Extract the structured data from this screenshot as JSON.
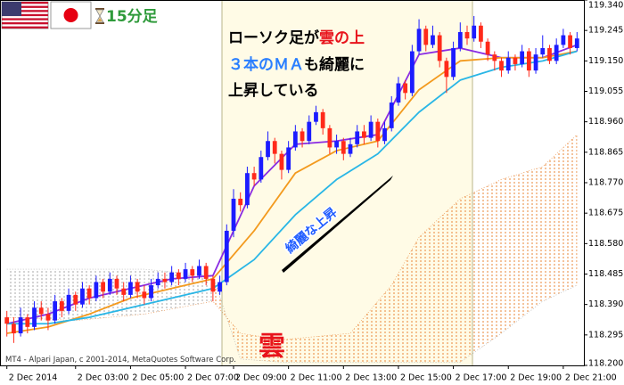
{
  "chart_data": {
    "type": "candlestick",
    "timeframe_label": "15分足",
    "copyright": "MT4 - Alpari Japan, c 2001-2014, MetaQuotes Software Corp.",
    "annotations": {
      "line1": [
        "ローソク足が",
        "雲の上"
      ],
      "line2": [
        "３本のＭＡ",
        "も綺麗に"
      ],
      "line3": "上昇している",
      "arrow_label": "綺麗な上昇",
      "cloud_label": "雲"
    },
    "up_color": "#1c1cff",
    "down_color": "#ff2a1a",
    "open": [
      118.35,
      118.33,
      118.3,
      118.35,
      118.32,
      118.38,
      118.36,
      118.34,
      118.4,
      118.37,
      118.42,
      118.39,
      118.44,
      118.41,
      118.46,
      118.43,
      118.47,
      118.44,
      118.42,
      118.46,
      118.43,
      118.41,
      118.45,
      118.47,
      118.46,
      118.49,
      118.47,
      118.5,
      118.48,
      118.51,
      118.47,
      118.43,
      118.46,
      118.62,
      118.72,
      118.7,
      118.8,
      118.78,
      118.85,
      118.9,
      118.86,
      118.81,
      118.88,
      118.93,
      118.9,
      118.96,
      118.99,
      118.94,
      118.88,
      118.9,
      118.86,
      118.89,
      118.93,
      118.91,
      118.96,
      118.9,
      118.94,
      119.02,
      119.08,
      119.05,
      119.18,
      119.25,
      119.2,
      119.23,
      119.15,
      119.1,
      119.19,
      119.24,
      119.22,
      119.26,
      119.21,
      119.17,
      119.15,
      119.12,
      119.16,
      119.14,
      119.18,
      119.12,
      119.17,
      119.19,
      119.15,
      119.2,
      119.23,
      119.19
    ],
    "high": [
      118.37,
      118.35,
      118.38,
      118.36,
      118.4,
      118.4,
      118.38,
      118.42,
      118.41,
      118.44,
      118.43,
      118.46,
      118.45,
      118.48,
      118.47,
      118.49,
      118.48,
      118.46,
      118.48,
      118.47,
      118.45,
      118.47,
      118.49,
      118.49,
      118.51,
      118.5,
      118.52,
      118.51,
      118.53,
      118.52,
      118.48,
      118.48,
      118.64,
      118.75,
      118.74,
      118.82,
      118.82,
      118.87,
      118.93,
      118.91,
      118.87,
      118.9,
      118.95,
      118.94,
      118.98,
      119.01,
      119.0,
      118.95,
      118.92,
      118.91,
      118.91,
      118.95,
      118.95,
      118.98,
      118.97,
      118.96,
      119.04,
      119.1,
      119.09,
      119.2,
      119.28,
      119.26,
      119.26,
      119.24,
      119.16,
      119.21,
      119.27,
      119.26,
      119.29,
      119.27,
      119.22,
      119.18,
      119.16,
      119.18,
      119.17,
      119.2,
      119.19,
      119.19,
      119.23,
      119.2,
      119.22,
      119.25,
      119.24,
      119.24
    ],
    "low": [
      118.29,
      118.27,
      118.29,
      118.3,
      118.31,
      118.34,
      118.31,
      118.33,
      118.35,
      118.36,
      118.37,
      118.38,
      118.39,
      118.4,
      118.41,
      118.42,
      118.42,
      118.4,
      118.41,
      118.41,
      118.39,
      118.4,
      118.44,
      118.44,
      118.45,
      118.45,
      118.46,
      118.46,
      118.47,
      118.45,
      118.4,
      118.42,
      118.45,
      118.6,
      118.68,
      118.69,
      118.76,
      118.77,
      118.84,
      118.83,
      118.78,
      118.8,
      118.87,
      118.88,
      118.89,
      118.95,
      118.92,
      118.86,
      118.86,
      118.84,
      118.85,
      118.88,
      118.89,
      118.9,
      118.88,
      118.89,
      118.93,
      119.01,
      119.03,
      119.04,
      119.17,
      119.18,
      119.19,
      119.13,
      119.05,
      119.09,
      119.18,
      119.2,
      119.21,
      119.19,
      119.15,
      119.12,
      119.1,
      119.11,
      119.12,
      119.13,
      119.1,
      119.11,
      119.16,
      119.14,
      119.14,
      119.19,
      119.17,
      119.18
    ],
    "close": [
      118.33,
      118.3,
      118.35,
      118.32,
      118.38,
      118.36,
      118.34,
      118.4,
      118.37,
      118.42,
      118.39,
      118.44,
      118.41,
      118.46,
      118.43,
      118.47,
      118.44,
      118.42,
      118.46,
      118.43,
      118.41,
      118.45,
      118.47,
      118.46,
      118.49,
      118.47,
      118.5,
      118.48,
      118.51,
      118.47,
      118.43,
      118.46,
      118.62,
      118.72,
      118.7,
      118.8,
      118.78,
      118.85,
      118.9,
      118.86,
      118.81,
      118.88,
      118.93,
      118.9,
      118.96,
      118.99,
      118.94,
      118.88,
      118.9,
      118.86,
      118.89,
      118.93,
      118.91,
      118.96,
      118.9,
      118.94,
      119.02,
      119.08,
      119.05,
      119.18,
      119.25,
      119.2,
      119.23,
      119.15,
      119.1,
      119.19,
      119.24,
      119.22,
      119.26,
      119.21,
      119.17,
      119.15,
      119.12,
      119.16,
      119.14,
      119.18,
      119.12,
      119.17,
      119.19,
      119.15,
      119.2,
      119.23,
      119.19,
      119.22
    ],
    "moving_averages": [
      {
        "color": "#8a2be2",
        "x": [
          0,
          6,
          12,
          18,
          24,
          30,
          36,
          42,
          48,
          54,
          60,
          66,
          72,
          78,
          83
        ],
        "values": [
          118.33,
          118.36,
          118.41,
          118.44,
          118.47,
          118.48,
          118.76,
          118.89,
          118.9,
          118.92,
          119.17,
          119.19,
          119.16,
          119.16,
          119.2
        ]
      },
      {
        "color": "#f39a1e",
        "x": [
          0,
          6,
          12,
          18,
          24,
          30,
          36,
          42,
          48,
          54,
          60,
          66,
          72,
          78,
          83
        ],
        "values": [
          118.3,
          118.32,
          118.36,
          118.41,
          118.44,
          118.47,
          118.62,
          118.8,
          118.87,
          118.9,
          119.06,
          119.15,
          119.16,
          119.16,
          119.18
        ]
      },
      {
        "color": "#29b6e6",
        "x": [
          0,
          6,
          12,
          18,
          24,
          30,
          36,
          42,
          48,
          54,
          60,
          66,
          72,
          78,
          83
        ],
        "values": [
          118.33,
          118.33,
          118.35,
          118.38,
          118.41,
          118.44,
          118.53,
          118.67,
          118.78,
          118.86,
          118.99,
          119.09,
          119.13,
          119.15,
          119.18
        ]
      }
    ],
    "cloud": {
      "x": [
        0,
        10,
        20,
        30,
        34,
        40,
        50,
        56,
        60,
        66,
        72,
        78,
        83
      ],
      "span_a": [
        118.35,
        118.34,
        118.36,
        118.4,
        118.3,
        118.28,
        118.3,
        118.45,
        118.6,
        118.72,
        118.78,
        118.82,
        118.92
      ],
      "span_b": [
        118.5,
        118.5,
        118.5,
        118.48,
        118.22,
        118.21,
        118.21,
        118.21,
        118.21,
        118.21,
        118.3,
        118.4,
        118.45
      ],
      "up_color": "#e8873a",
      "down_color": "#a8a8a8"
    },
    "xlim": [
      -1,
      84
    ],
    "xticks": [
      {
        "value": 0,
        "label": "2 Dec 2014"
      },
      {
        "value": 10,
        "label": "2 Dec 03:00"
      },
      {
        "value": 18,
        "label": "2 Dec 05:00"
      },
      {
        "value": 26,
        "label": "2 Dec 07:00"
      },
      {
        "value": 33,
        "label": "2 Dec 09:00"
      },
      {
        "value": 41,
        "label": "2 Dec 11:00"
      },
      {
        "value": 49,
        "label": "2 Dec 13:00"
      },
      {
        "value": 57,
        "label": "2 Dec 15:00"
      },
      {
        "value": 65,
        "label": "2 Dec 17:00"
      },
      {
        "value": 73,
        "label": "2 Dec 19:00"
      },
      {
        "value": 81,
        "label": "2 Dec 21:00"
      }
    ],
    "ylim": [
      118.2,
      119.34
    ],
    "yticks": [
      {
        "value": 119.34,
        "label": "119.340"
      },
      {
        "value": 119.245,
        "label": "119.245"
      },
      {
        "value": 119.15,
        "label": "119.150"
      },
      {
        "value": 119.055,
        "label": "119.055"
      },
      {
        "value": 118.96,
        "label": "118.960"
      },
      {
        "value": 118.865,
        "label": "118.865"
      },
      {
        "value": 118.77,
        "label": "118.770"
      },
      {
        "value": 118.675,
        "label": "118.675"
      },
      {
        "value": 118.58,
        "label": "118.580"
      },
      {
        "value": 118.485,
        "label": "118.485"
      },
      {
        "value": 118.39,
        "label": "118.390"
      },
      {
        "value": 118.295,
        "label": "118.295"
      },
      {
        "value": 118.2,
        "label": "118.200"
      }
    ]
  }
}
